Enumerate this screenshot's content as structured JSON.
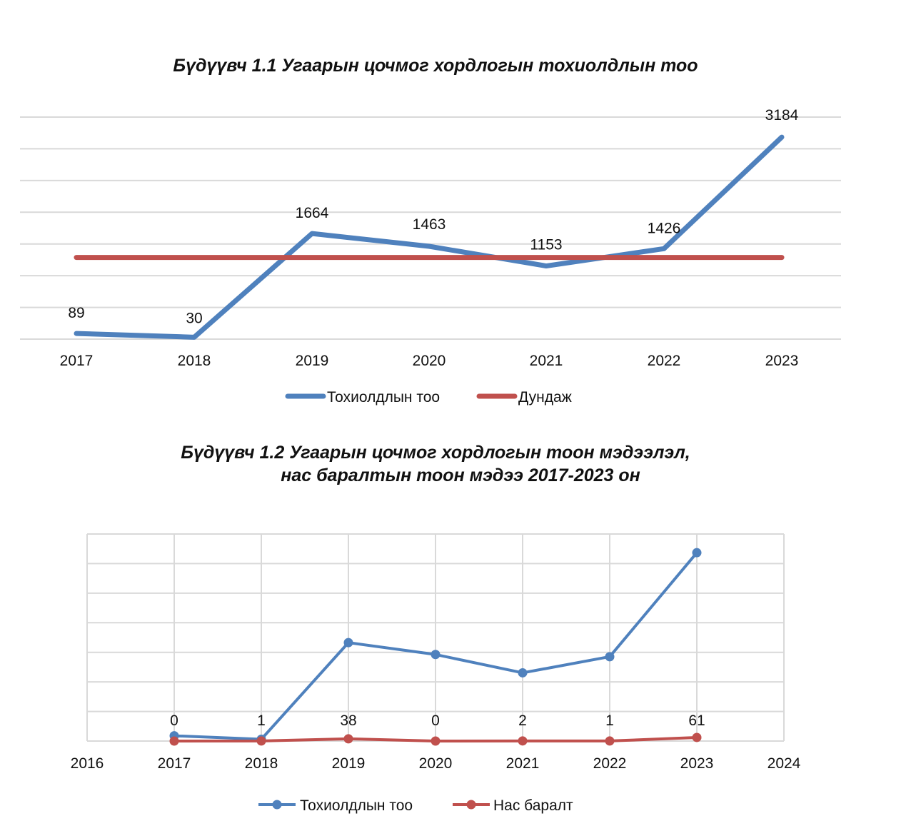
{
  "chart_data": [
    {
      "type": "line",
      "title": "Бүдүүвч 1.1 Угаарын цочмог хордлогын тохиолдлын тоо",
      "xlabel": "",
      "ylabel": "",
      "x": [
        "2017",
        "2018",
        "2019",
        "2020",
        "2021",
        "2022",
        "2023"
      ],
      "ylim": [
        0,
        3500
      ],
      "grid": true,
      "legend_position": "bottom",
      "series": [
        {
          "name": "Тохиолдлын тоо",
          "color": "#4f81bd",
          "values": [
            89,
            30,
            1664,
            1463,
            1153,
            1426,
            3184
          ],
          "data_labels": [
            "89",
            "30",
            "1664",
            "1463",
            "1153",
            "1426",
            "3184"
          ]
        },
        {
          "name": "Дундаж",
          "color": "#c0504d",
          "values": [
            1287,
            1287,
            1287,
            1287,
            1287,
            1287,
            1287
          ]
        }
      ]
    },
    {
      "type": "line",
      "title": "Бүдүүвч 1.2 Угаарын цочмог хордлогын тоон мэдээлэл, нас баралтын тоон мэдээ 2017-2023 он",
      "title_lines": [
        "Бүдүүвч 1.2 Угаарын цочмог хордлогын тоон мэдээлэл,",
        "нас баралтын тоон мэдээ 2017-2023 он"
      ],
      "xlabel": "",
      "ylabel": "",
      "x_ticks": [
        "2016",
        "2017",
        "2018",
        "2019",
        "2020",
        "2021",
        "2022",
        "2023",
        "2024"
      ],
      "xlim": [
        2016,
        2024
      ],
      "x": [
        2017,
        2018,
        2019,
        2020,
        2021,
        2022,
        2023
      ],
      "ylim": [
        0,
        3500
      ],
      "grid": true,
      "legend_position": "bottom",
      "series": [
        {
          "name": "Тохиолдлын тоо",
          "color": "#4f81bd",
          "values": [
            89,
            30,
            1664,
            1463,
            1153,
            1426,
            3184
          ]
        },
        {
          "name": "Нас баралт",
          "color": "#c0504d",
          "values": [
            0,
            1,
            38,
            0,
            2,
            1,
            61
          ],
          "data_labels": [
            "0",
            "1",
            "38",
            "0",
            "2",
            "1",
            "61"
          ]
        }
      ]
    }
  ]
}
